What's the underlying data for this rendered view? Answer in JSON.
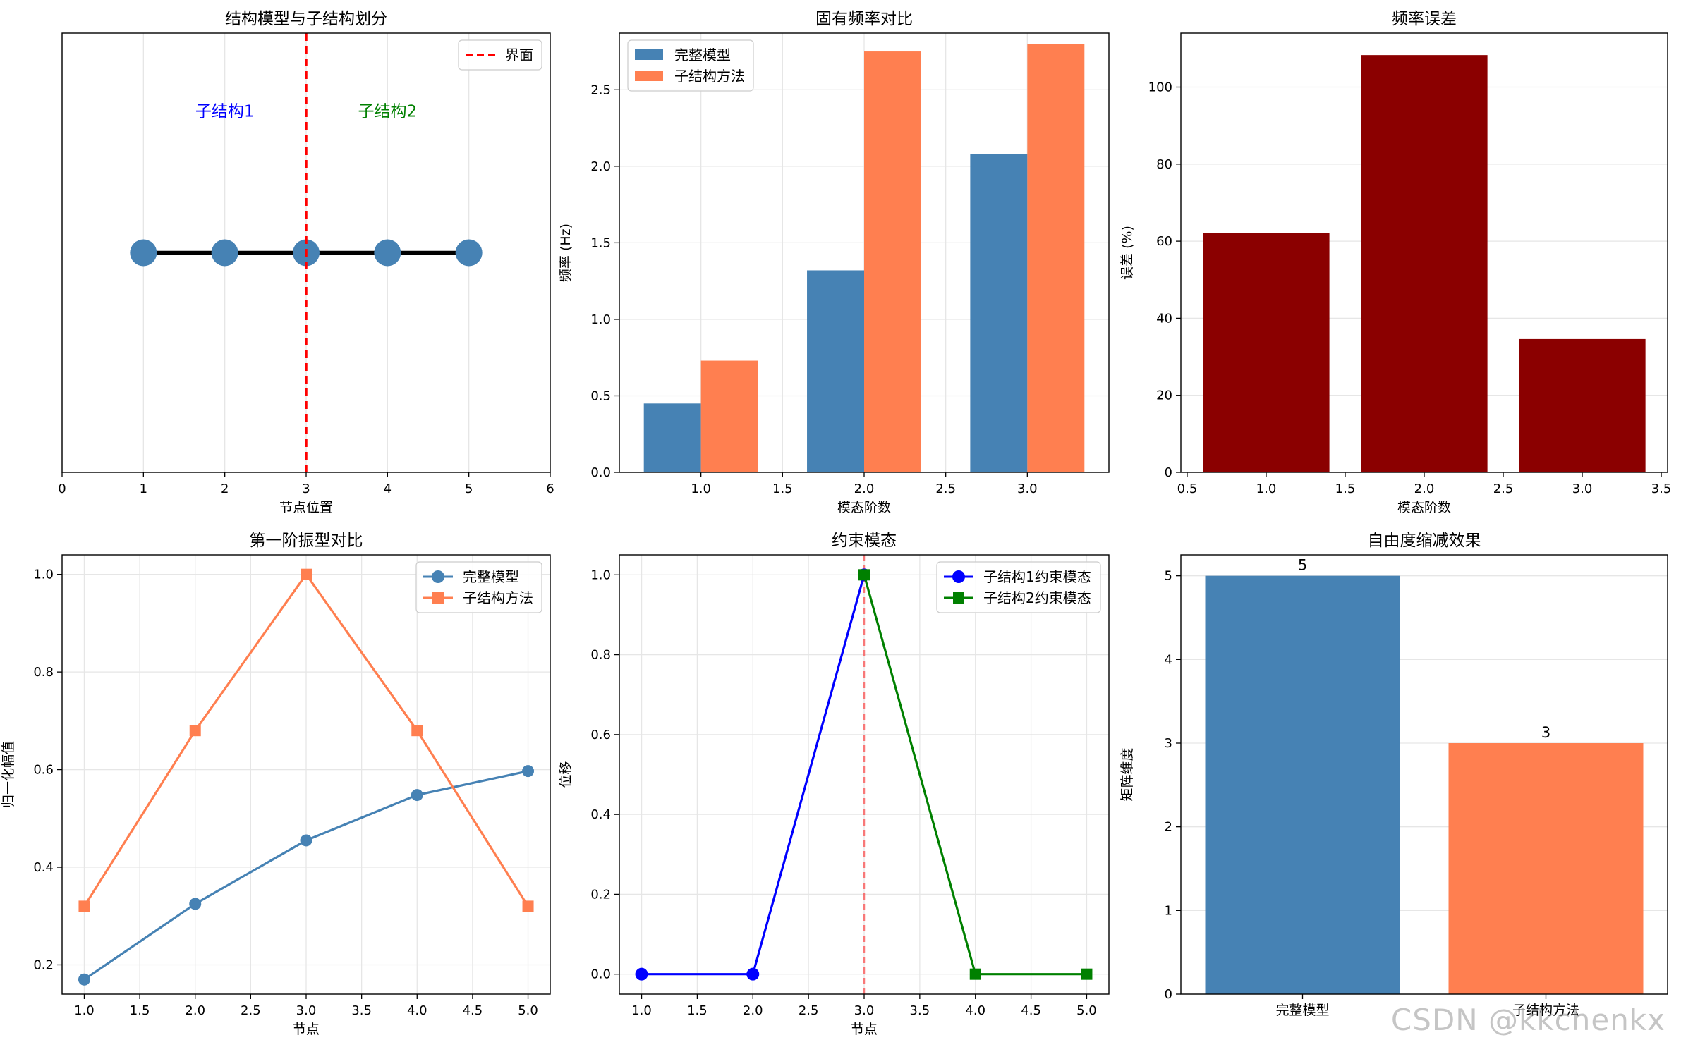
{
  "watermark": "CSDN @kkchenkx",
  "chart_data": [
    {
      "type": "diagram",
      "title": "结构模型与子结构划分",
      "xlabel": "节点位置",
      "xlim": [
        0,
        6
      ],
      "ylim": [
        -0.5,
        0.5
      ],
      "xticks": [
        0,
        1,
        2,
        3,
        4,
        5,
        6
      ],
      "tick_labels": [
        "0",
        "1",
        "2",
        "3",
        "4",
        "5",
        "6"
      ],
      "grid": true,
      "nodes": [
        1,
        2,
        3,
        4,
        5
      ],
      "node_color": "#4682b4",
      "interface_x": 3,
      "interface_color": "#ff0000",
      "legend": {
        "position": "top-right",
        "entries": [
          {
            "label": "界面",
            "color": "#ff0000",
            "style": "dashed"
          }
        ]
      },
      "annotations": [
        {
          "text": "子结构1",
          "x": 2,
          "y": 0.31,
          "color": "#0000ff"
        },
        {
          "text": "子结构2",
          "x": 4,
          "y": 0.31,
          "color": "#008000"
        }
      ]
    },
    {
      "type": "bar",
      "title": "固有频率对比",
      "xlabel": "模态阶数",
      "ylabel": "频率 (Hz)",
      "xlim": [
        0.5,
        3.5
      ],
      "ylim": [
        0,
        2.87
      ],
      "xticks": [
        1.0,
        1.5,
        2.0,
        2.5,
        3.0
      ],
      "xtick_labels": [
        "1.0",
        "1.5",
        "2.0",
        "2.5",
        "3.0"
      ],
      "yticks": [
        0.0,
        0.5,
        1.0,
        1.5,
        2.0,
        2.5
      ],
      "ytick_labels": [
        "0.0",
        "0.5",
        "1.0",
        "1.5",
        "2.0",
        "2.5"
      ],
      "grid": true,
      "categories": [
        1,
        2,
        3
      ],
      "legend": {
        "position": "top-left"
      },
      "series": [
        {
          "name": "完整模型",
          "values": [
            0.45,
            1.32,
            2.08
          ],
          "color": "#4682b4"
        },
        {
          "name": "子结构方法",
          "values": [
            0.73,
            2.75,
            2.8
          ],
          "color": "#ff7f50"
        }
      ]
    },
    {
      "type": "bar",
      "title": "频率误差",
      "xlabel": "模态阶数",
      "ylabel": "误差 (%)",
      "xlim": [
        0.46,
        3.54
      ],
      "ylim": [
        0,
        114
      ],
      "xticks": [
        0.5,
        1.0,
        1.5,
        2.0,
        2.5,
        3.0,
        3.5
      ],
      "xtick_labels": [
        "0.5",
        "1.0",
        "1.5",
        "2.0",
        "2.5",
        "3.0",
        "3.5"
      ],
      "yticks": [
        0,
        20,
        40,
        60,
        80,
        100
      ],
      "ytick_labels": [
        "0",
        "20",
        "40",
        "60",
        "80",
        "100"
      ],
      "grid": true,
      "categories": [
        1,
        2,
        3
      ],
      "values": [
        62.2,
        108.3,
        34.6
      ],
      "color": "#8b0000"
    },
    {
      "type": "line",
      "title": "第一阶振型对比",
      "xlabel": "节点",
      "ylabel": "归一化幅值",
      "xlim": [
        0.8,
        5.2
      ],
      "ylim": [
        0.14,
        1.04
      ],
      "xticks": [
        1.0,
        1.5,
        2.0,
        2.5,
        3.0,
        3.5,
        4.0,
        4.5,
        5.0
      ],
      "xtick_labels": [
        "1.0",
        "1.5",
        "2.0",
        "2.5",
        "3.0",
        "3.5",
        "4.0",
        "4.5",
        "5.0"
      ],
      "yticks": [
        0.2,
        0.4,
        0.6,
        0.8,
        1.0
      ],
      "ytick_labels": [
        "0.2",
        "0.4",
        "0.6",
        "0.8",
        "1.0"
      ],
      "grid": true,
      "x": [
        1,
        2,
        3,
        4,
        5
      ],
      "legend": {
        "position": "top-right"
      },
      "series": [
        {
          "name": "完整模型",
          "values": [
            0.17,
            0.325,
            0.455,
            0.548,
            0.597
          ],
          "color": "#4682b4",
          "marker": "circle"
        },
        {
          "name": "子结构方法",
          "values": [
            0.32,
            0.68,
            1.0,
            0.68,
            0.32
          ],
          "color": "#ff7f50",
          "marker": "square"
        }
      ]
    },
    {
      "type": "line",
      "title": "约束模态",
      "xlabel": "节点",
      "ylabel": "位移",
      "xlim": [
        0.8,
        5.2
      ],
      "ylim": [
        -0.05,
        1.05
      ],
      "xticks": [
        1.0,
        1.5,
        2.0,
        2.5,
        3.0,
        3.5,
        4.0,
        4.5,
        5.0
      ],
      "xtick_labels": [
        "1.0",
        "1.5",
        "2.0",
        "2.5",
        "3.0",
        "3.5",
        "4.0",
        "4.5",
        "5.0"
      ],
      "yticks": [
        0.0,
        0.2,
        0.4,
        0.6,
        0.8,
        1.0
      ],
      "ytick_labels": [
        "0.0",
        "0.2",
        "0.4",
        "0.6",
        "0.8",
        "1.0"
      ],
      "grid": true,
      "interface_x": 3,
      "legend": {
        "position": "top-right"
      },
      "series": [
        {
          "name": "子结构1约束模态",
          "x": [
            1,
            2,
            3
          ],
          "values": [
            0,
            0,
            1
          ],
          "color": "#0000ff",
          "marker": "circle"
        },
        {
          "name": "子结构2约束模态",
          "x": [
            3,
            4,
            5
          ],
          "values": [
            1,
            0,
            0
          ],
          "color": "#008000",
          "marker": "square"
        }
      ]
    },
    {
      "type": "bar",
      "title": "自由度缩减效果",
      "ylabel": "矩阵维度",
      "xlim": [
        -0.5,
        1.5
      ],
      "ylim": [
        0,
        5.25
      ],
      "yticks": [
        0,
        1,
        2,
        3,
        4,
        5
      ],
      "ytick_labels": [
        "0",
        "1",
        "2",
        "3",
        "4",
        "5"
      ],
      "grid": true,
      "categories": [
        "完整模型",
        "子结构方法"
      ],
      "values": [
        5,
        3
      ],
      "value_labels": [
        "5",
        "3"
      ],
      "colors": [
        "#4682b4",
        "#ff7f50"
      ]
    }
  ]
}
